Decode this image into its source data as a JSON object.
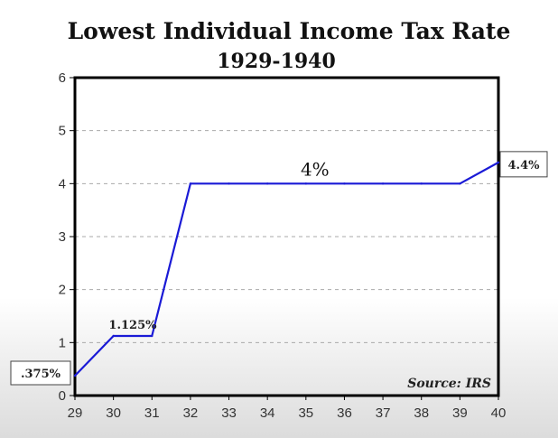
{
  "chart_data": {
    "type": "line",
    "title": "Lowest Individual Income Tax Rate",
    "subtitle": "1929-1940",
    "x": [
      29,
      30,
      31,
      32,
      33,
      34,
      35,
      36,
      37,
      38,
      39,
      40
    ],
    "xticks": [
      "29",
      "30",
      "31",
      "32",
      "33",
      "34",
      "35",
      "36",
      "37",
      "38",
      "39",
      "40"
    ],
    "yticks": [
      "0",
      "1",
      "2",
      "3",
      "4",
      "5",
      "6"
    ],
    "xlim": [
      29,
      40
    ],
    "ylim": [
      0,
      6
    ],
    "series": [
      {
        "color": "#1a1ad6",
        "values": [
          0.375,
          1.125,
          1.125,
          4,
          4,
          4,
          4,
          4,
          4,
          4,
          4,
          4.4
        ]
      }
    ],
    "grid": true,
    "annotations": [
      {
        "text": ".375%",
        "x": 29,
        "y": 0.375
      },
      {
        "text": "1.125%",
        "x": 30.5,
        "y": 1.125
      },
      {
        "text": "4%",
        "x": 35,
        "y": 4
      },
      {
        "text": "4.4%",
        "x": 40,
        "y": 4.4
      }
    ],
    "source_note": "Source: IRS"
  }
}
